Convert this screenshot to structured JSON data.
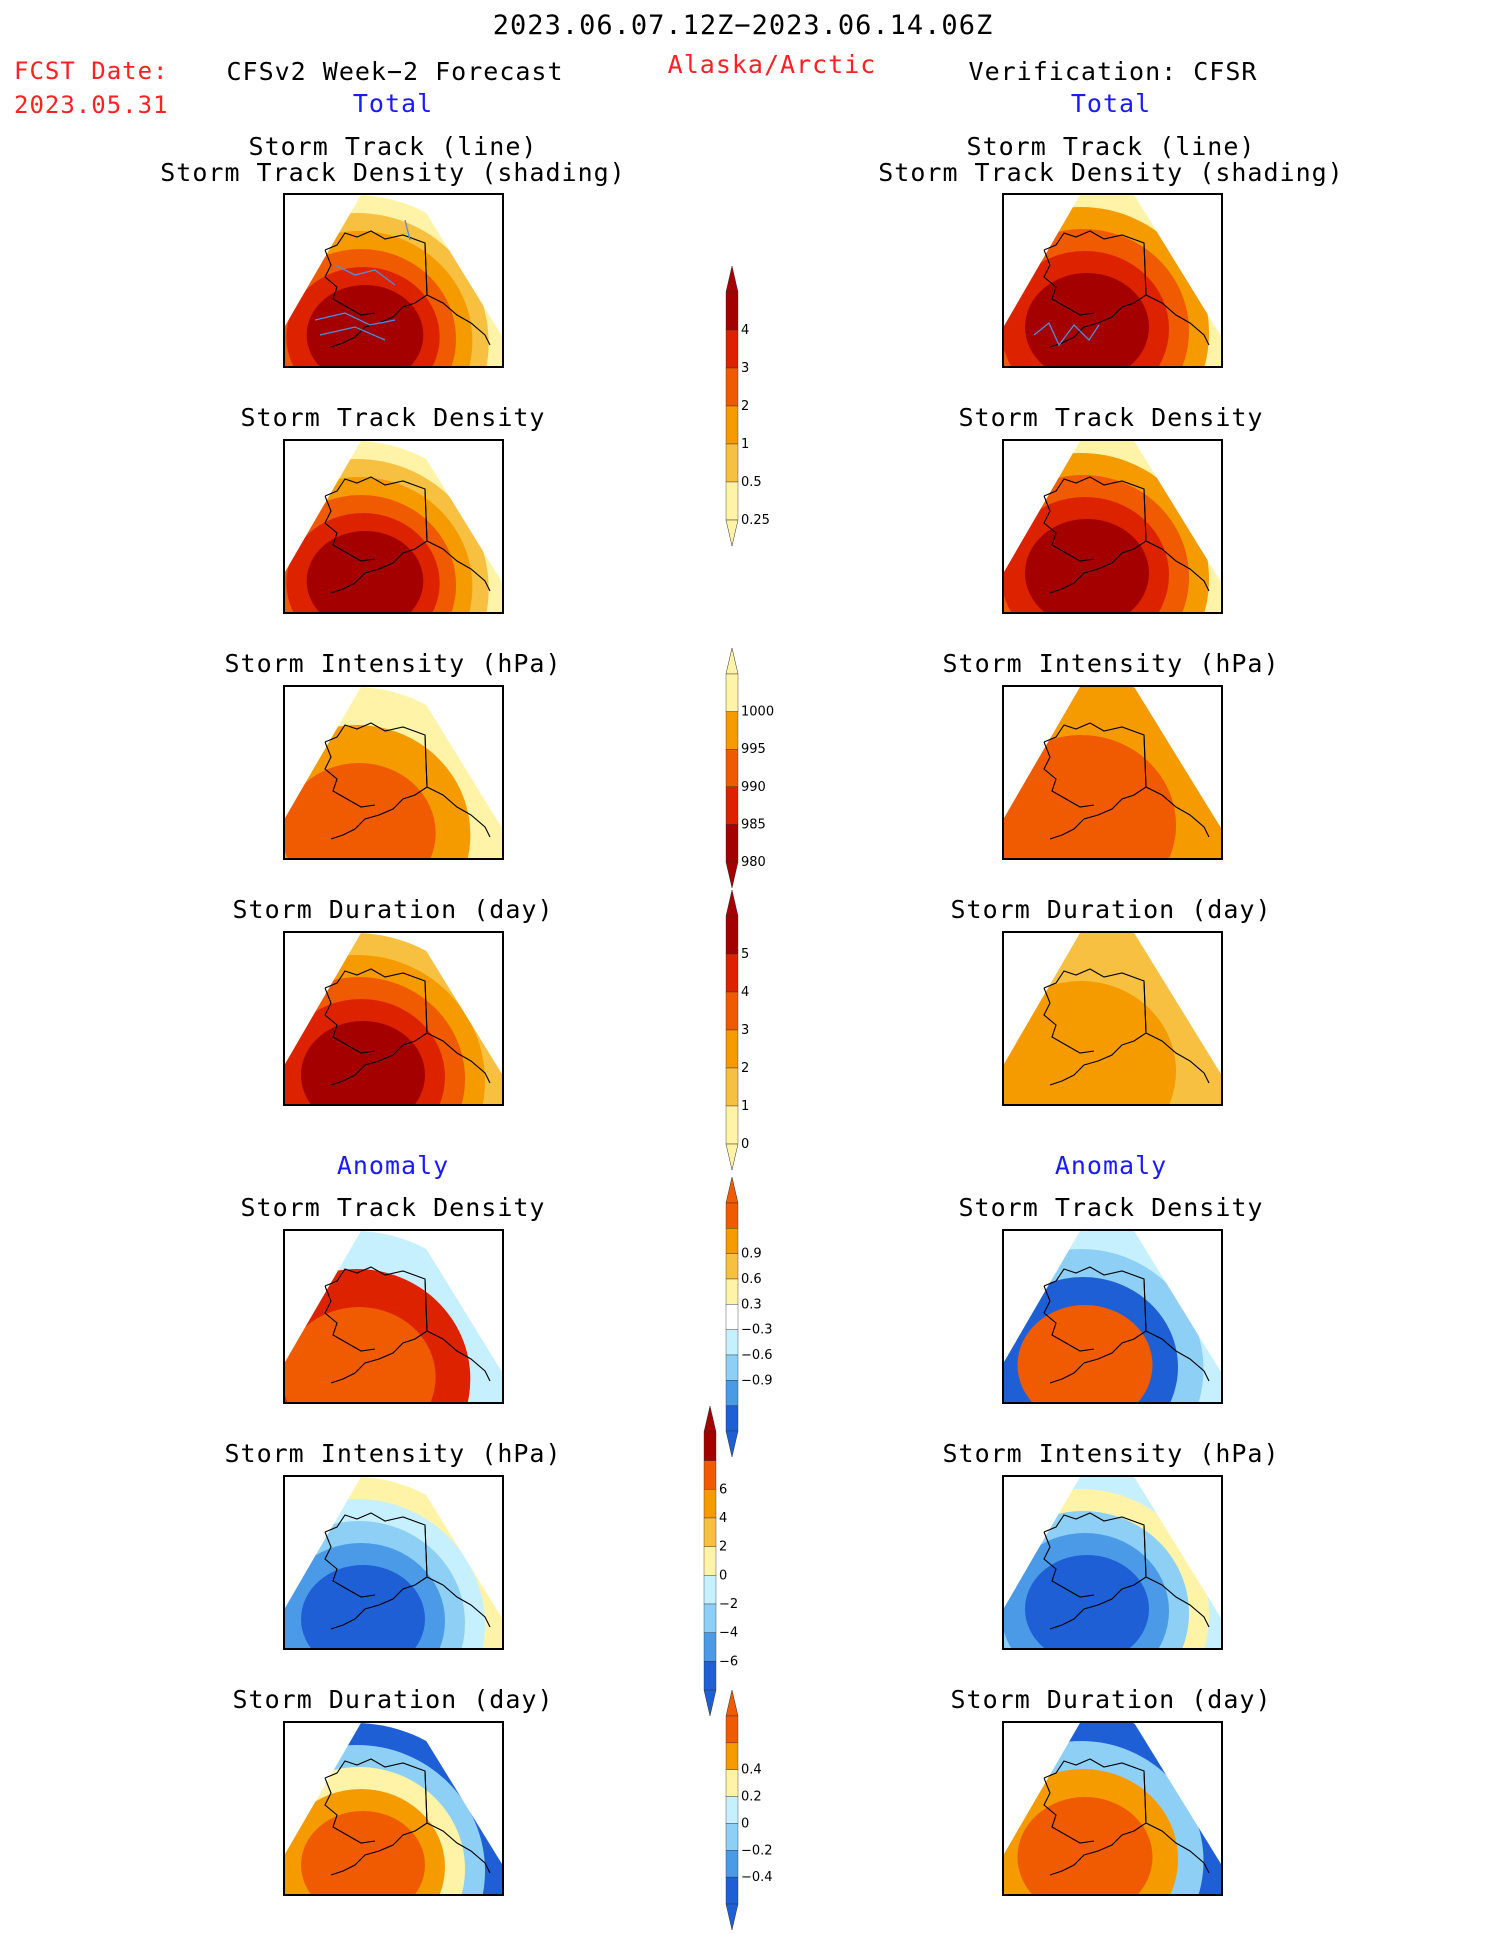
{
  "header": {
    "date_range": "2023.06.07.12Z−2023.06.14.06Z",
    "fcst_date_label": "FCST Date:",
    "fcst_date_value": "2023.05.31",
    "forecast_title": "CFSv2 Week−2 Forecast",
    "region": "Alaska/Arctic",
    "verification_title": "Verification: CFSR",
    "total_label": "Total",
    "anomaly_label": "Anomaly"
  },
  "panel_titles": {
    "track_line": "Storm Track (line)",
    "track_shading": "Storm Track Density (shading)",
    "density": "Storm Track Density",
    "intensity": "Storm Intensity (hPa)",
    "duration": "Storm Duration (day)"
  },
  "colors": {
    "dark_red": "#a50000",
    "red": "#dd2200",
    "orange_red": "#f05a00",
    "orange": "#f59b00",
    "light_orange": "#f8c040",
    "pale_yellow": "#fff3a8",
    "white": "#ffffff",
    "light_cyan": "#c7f0ff",
    "light_blue": "#8ed0f5",
    "mid_blue": "#4a9ae8",
    "deep_blue": "#1f5fd6",
    "track_line": "#4a8fe0"
  },
  "chart_data": [
    {
      "type": "heatmap",
      "name": "total_density_colorbar",
      "levels": [
        0.25,
        0.5,
        1,
        2,
        3,
        4
      ],
      "tick_labels": [
        "0.25",
        "0.5",
        "1",
        "2",
        "3",
        "4"
      ],
      "colors": [
        "#fff3a8",
        "#f8c040",
        "#f59b00",
        "#f05a00",
        "#dd2200",
        "#a50000"
      ]
    },
    {
      "type": "heatmap",
      "name": "total_intensity_colorbar",
      "levels": [
        1000,
        995,
        990,
        985,
        980
      ],
      "tick_labels": [
        "1000",
        "995",
        "990",
        "985",
        "980"
      ],
      "colors": [
        "#fff3a8",
        "#f59b00",
        "#f05a00",
        "#dd2200",
        "#a50000"
      ]
    },
    {
      "type": "heatmap",
      "name": "total_duration_colorbar",
      "levels": [
        0,
        1,
        2,
        3,
        4,
        5
      ],
      "tick_labels": [
        "0",
        "1",
        "2",
        "3",
        "4",
        "5"
      ],
      "colors": [
        "#fff3a8",
        "#f8c040",
        "#f59b00",
        "#f05a00",
        "#dd2200",
        "#a50000"
      ]
    },
    {
      "type": "heatmap",
      "name": "anomaly_density_colorbar",
      "levels": [
        -0.9,
        -0.6,
        -0.3,
        0.3,
        0.6,
        0.9
      ],
      "tick_labels": [
        "−0.9",
        "−0.6",
        "−0.3",
        "0.3",
        "0.6",
        "0.9"
      ],
      "colors": [
        "#1f5fd6",
        "#4a9ae8",
        "#8ed0f5",
        "#c7f0ff",
        "#ffffff",
        "#fff3a8",
        "#f8c040",
        "#f59b00",
        "#f05a00"
      ]
    },
    {
      "type": "heatmap",
      "name": "anomaly_intensity_colorbar",
      "levels": [
        -6,
        -4,
        -2,
        0,
        2,
        4,
        6
      ],
      "tick_labels": [
        "−6",
        "−4",
        "−2",
        "0",
        "2",
        "4",
        "6"
      ],
      "colors": [
        "#1f5fd6",
        "#4a9ae8",
        "#8ed0f5",
        "#c7f0ff",
        "#fff3a8",
        "#f8c040",
        "#f59b00",
        "#f05a00",
        "#a50000"
      ]
    },
    {
      "type": "heatmap",
      "name": "anomaly_duration_colorbar",
      "levels": [
        -0.4,
        -0.2,
        0,
        0.2,
        0.4
      ],
      "tick_labels": [
        "−0.4",
        "−0.2",
        "0",
        "0.2",
        "0.4"
      ],
      "colors": [
        "#1f5fd6",
        "#4a9ae8",
        "#8ed0f5",
        "#c7f0ff",
        "#fff3a8",
        "#f59b00",
        "#f05a00"
      ]
    }
  ]
}
